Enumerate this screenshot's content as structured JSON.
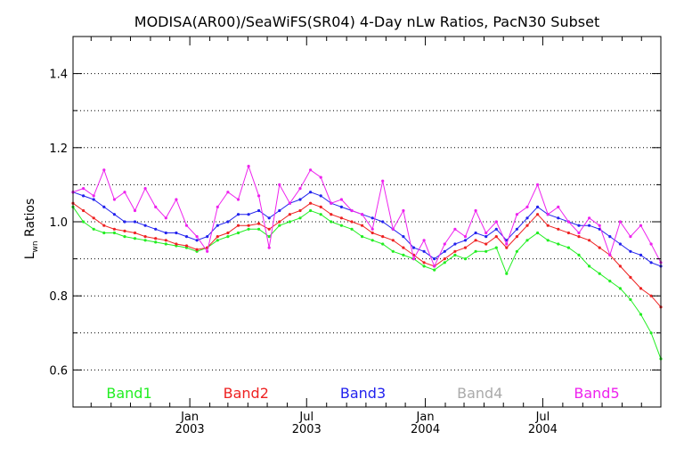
{
  "chart_data": {
    "type": "line",
    "title": "MODISA(AR00)/SeaWiFS(SR04) 4-Day nLw Ratios, PacN30 Subset",
    "ylabel_main": "L",
    "ylabel_sub": "wn",
    "ylabel_rest": " Ratios",
    "xlim": [
      "2002-07-04",
      "2004-12-31"
    ],
    "ylim": [
      0.5,
      1.5
    ],
    "yticks": [
      0.6,
      0.8,
      1.0,
      1.2,
      1.4
    ],
    "ytick_labels": [
      "0.6",
      "0.8",
      "1.0",
      "1.2",
      "1.4"
    ],
    "ygrid": [
      0.6,
      0.7,
      0.8,
      0.9,
      1.0,
      1.1,
      1.2,
      1.3,
      1.4
    ],
    "grid": "horizontal dotted",
    "xticks": [
      {
        "date": "2003-01-01",
        "month": "Jan",
        "year": "2003"
      },
      {
        "date": "2003-07-01",
        "month": "Jul",
        "year": "2003"
      },
      {
        "date": "2004-01-01",
        "month": "Jan",
        "year": "2004"
      },
      {
        "date": "2004-07-01",
        "month": "Jul",
        "year": "2004"
      }
    ],
    "x_minor_ticks": [
      "2002-08-01",
      "2002-09-01",
      "2002-10-01",
      "2002-11-01",
      "2002-12-01",
      "2003-02-01",
      "2003-03-01",
      "2003-04-01",
      "2003-05-01",
      "2003-06-01",
      "2003-08-01",
      "2003-09-01",
      "2003-10-01",
      "2003-11-01",
      "2003-12-01",
      "2004-02-01",
      "2004-03-01",
      "2004-04-01",
      "2004-05-01",
      "2004-06-01",
      "2004-08-01",
      "2004-09-01",
      "2004-10-01",
      "2004-11-01",
      "2004-12-01"
    ],
    "legend_placement": "bottom inside plot",
    "series": [
      {
        "name": "Band1",
        "color": "#22ee22",
        "points": [
          [
            "2002-07-04",
            1.04
          ],
          [
            "2002-07-20",
            1.0
          ],
          [
            "2002-08-05",
            0.98
          ],
          [
            "2002-08-21",
            0.97
          ],
          [
            "2002-09-06",
            0.97
          ],
          [
            "2002-09-22",
            0.96
          ],
          [
            "2002-10-08",
            0.955
          ],
          [
            "2002-10-24",
            0.95
          ],
          [
            "2002-11-09",
            0.945
          ],
          [
            "2002-11-25",
            0.94
          ],
          [
            "2002-12-11",
            0.935
          ],
          [
            "2002-12-27",
            0.93
          ],
          [
            "2003-01-12",
            0.92
          ],
          [
            "2003-01-28",
            0.93
          ],
          [
            "2003-02-13",
            0.95
          ],
          [
            "2003-03-01",
            0.96
          ],
          [
            "2003-03-17",
            0.97
          ],
          [
            "2003-04-02",
            0.98
          ],
          [
            "2003-04-18",
            0.98
          ],
          [
            "2003-05-04",
            0.96
          ],
          [
            "2003-05-20",
            0.99
          ],
          [
            "2003-06-05",
            1.0
          ],
          [
            "2003-06-21",
            1.01
          ],
          [
            "2003-07-07",
            1.03
          ],
          [
            "2003-07-23",
            1.02
          ],
          [
            "2003-08-08",
            1.0
          ],
          [
            "2003-08-24",
            0.99
          ],
          [
            "2003-09-09",
            0.98
          ],
          [
            "2003-09-25",
            0.96
          ],
          [
            "2003-10-11",
            0.95
          ],
          [
            "2003-10-27",
            0.94
          ],
          [
            "2003-11-12",
            0.92
          ],
          [
            "2003-11-28",
            0.91
          ],
          [
            "2003-12-14",
            0.9
          ],
          [
            "2003-12-30",
            0.88
          ],
          [
            "2004-01-15",
            0.87
          ],
          [
            "2004-01-31",
            0.89
          ],
          [
            "2004-02-16",
            0.91
          ],
          [
            "2004-03-03",
            0.9
          ],
          [
            "2004-03-19",
            0.92
          ],
          [
            "2004-04-04",
            0.92
          ],
          [
            "2004-04-20",
            0.93
          ],
          [
            "2004-05-06",
            0.86
          ],
          [
            "2004-05-22",
            0.92
          ],
          [
            "2004-06-07",
            0.95
          ],
          [
            "2004-06-23",
            0.97
          ],
          [
            "2004-07-09",
            0.95
          ],
          [
            "2004-07-25",
            0.94
          ],
          [
            "2004-08-10",
            0.93
          ],
          [
            "2004-08-26",
            0.91
          ],
          [
            "2004-09-11",
            0.88
          ],
          [
            "2004-09-27",
            0.86
          ],
          [
            "2004-10-13",
            0.84
          ],
          [
            "2004-10-29",
            0.82
          ],
          [
            "2004-11-14",
            0.79
          ],
          [
            "2004-11-30",
            0.75
          ],
          [
            "2004-12-16",
            0.7
          ],
          [
            "2004-12-31",
            0.63
          ]
        ]
      },
      {
        "name": "Band2",
        "color": "#ee2222",
        "points": [
          [
            "2002-07-04",
            1.05
          ],
          [
            "2002-07-20",
            1.03
          ],
          [
            "2002-08-05",
            1.01
          ],
          [
            "2002-08-21",
            0.99
          ],
          [
            "2002-09-06",
            0.98
          ],
          [
            "2002-09-22",
            0.975
          ],
          [
            "2002-10-08",
            0.97
          ],
          [
            "2002-10-24",
            0.96
          ],
          [
            "2002-11-09",
            0.955
          ],
          [
            "2002-11-25",
            0.95
          ],
          [
            "2002-12-11",
            0.94
          ],
          [
            "2002-12-27",
            0.935
          ],
          [
            "2003-01-12",
            0.925
          ],
          [
            "2003-01-28",
            0.93
          ],
          [
            "2003-02-13",
            0.96
          ],
          [
            "2003-03-01",
            0.97
          ],
          [
            "2003-03-17",
            0.99
          ],
          [
            "2003-04-02",
            0.99
          ],
          [
            "2003-04-18",
            0.995
          ],
          [
            "2003-05-04",
            0.98
          ],
          [
            "2003-05-20",
            1.0
          ],
          [
            "2003-06-05",
            1.02
          ],
          [
            "2003-06-21",
            1.03
          ],
          [
            "2003-07-07",
            1.05
          ],
          [
            "2003-07-23",
            1.04
          ],
          [
            "2003-08-08",
            1.02
          ],
          [
            "2003-08-24",
            1.01
          ],
          [
            "2003-09-09",
            1.0
          ],
          [
            "2003-09-25",
            0.99
          ],
          [
            "2003-10-11",
            0.97
          ],
          [
            "2003-10-27",
            0.96
          ],
          [
            "2003-11-12",
            0.95
          ],
          [
            "2003-11-28",
            0.93
          ],
          [
            "2003-12-14",
            0.91
          ],
          [
            "2003-12-30",
            0.89
          ],
          [
            "2004-01-15",
            0.88
          ],
          [
            "2004-01-31",
            0.9
          ],
          [
            "2004-02-16",
            0.92
          ],
          [
            "2004-03-03",
            0.93
          ],
          [
            "2004-03-19",
            0.95
          ],
          [
            "2004-04-04",
            0.94
          ],
          [
            "2004-04-20",
            0.96
          ],
          [
            "2004-05-06",
            0.93
          ],
          [
            "2004-05-22",
            0.96
          ],
          [
            "2004-06-07",
            0.99
          ],
          [
            "2004-06-23",
            1.02
          ],
          [
            "2004-07-09",
            0.99
          ],
          [
            "2004-07-25",
            0.98
          ],
          [
            "2004-08-10",
            0.97
          ],
          [
            "2004-08-26",
            0.96
          ],
          [
            "2004-09-11",
            0.95
          ],
          [
            "2004-09-27",
            0.93
          ],
          [
            "2004-10-13",
            0.91
          ],
          [
            "2004-10-29",
            0.88
          ],
          [
            "2004-11-14",
            0.85
          ],
          [
            "2004-11-30",
            0.82
          ],
          [
            "2004-12-16",
            0.8
          ],
          [
            "2004-12-31",
            0.77
          ]
        ]
      },
      {
        "name": "Band3",
        "color": "#2222ee",
        "points": [
          [
            "2002-07-04",
            1.08
          ],
          [
            "2002-07-20",
            1.07
          ],
          [
            "2002-08-05",
            1.06
          ],
          [
            "2002-08-21",
            1.04
          ],
          [
            "2002-09-06",
            1.02
          ],
          [
            "2002-09-22",
            1.0
          ],
          [
            "2002-10-08",
            1.0
          ],
          [
            "2002-10-24",
            0.99
          ],
          [
            "2002-11-09",
            0.98
          ],
          [
            "2002-11-25",
            0.97
          ],
          [
            "2002-12-11",
            0.97
          ],
          [
            "2002-12-27",
            0.96
          ],
          [
            "2003-01-12",
            0.95
          ],
          [
            "2003-01-28",
            0.96
          ],
          [
            "2003-02-13",
            0.99
          ],
          [
            "2003-03-01",
            1.0
          ],
          [
            "2003-03-17",
            1.02
          ],
          [
            "2003-04-02",
            1.02
          ],
          [
            "2003-04-18",
            1.03
          ],
          [
            "2003-05-04",
            1.01
          ],
          [
            "2003-05-20",
            1.03
          ],
          [
            "2003-06-05",
            1.05
          ],
          [
            "2003-06-21",
            1.06
          ],
          [
            "2003-07-07",
            1.08
          ],
          [
            "2003-07-23",
            1.07
          ],
          [
            "2003-08-08",
            1.05
          ],
          [
            "2003-08-24",
            1.04
          ],
          [
            "2003-09-09",
            1.03
          ],
          [
            "2003-09-25",
            1.02
          ],
          [
            "2003-10-11",
            1.01
          ],
          [
            "2003-10-27",
            1.0
          ],
          [
            "2003-11-12",
            0.98
          ],
          [
            "2003-11-28",
            0.96
          ],
          [
            "2003-12-14",
            0.93
          ],
          [
            "2003-12-30",
            0.92
          ],
          [
            "2004-01-15",
            0.9
          ],
          [
            "2004-01-31",
            0.92
          ],
          [
            "2004-02-16",
            0.94
          ],
          [
            "2004-03-03",
            0.95
          ],
          [
            "2004-03-19",
            0.97
          ],
          [
            "2004-04-04",
            0.96
          ],
          [
            "2004-04-20",
            0.98
          ],
          [
            "2004-05-06",
            0.95
          ],
          [
            "2004-05-22",
            0.98
          ],
          [
            "2004-06-07",
            1.01
          ],
          [
            "2004-06-23",
            1.04
          ],
          [
            "2004-07-09",
            1.02
          ],
          [
            "2004-07-25",
            1.01
          ],
          [
            "2004-08-10",
            1.0
          ],
          [
            "2004-08-26",
            0.99
          ],
          [
            "2004-09-11",
            0.99
          ],
          [
            "2004-09-27",
            0.98
          ],
          [
            "2004-10-13",
            0.96
          ],
          [
            "2004-10-29",
            0.94
          ],
          [
            "2004-11-14",
            0.92
          ],
          [
            "2004-11-30",
            0.91
          ],
          [
            "2004-12-16",
            0.89
          ],
          [
            "2004-12-31",
            0.88
          ]
        ]
      },
      {
        "name": "Band4",
        "color": "#aaaaaa",
        "points": []
      },
      {
        "name": "Band5",
        "color": "#ee22ee",
        "points": [
          [
            "2002-07-04",
            1.08
          ],
          [
            "2002-07-20",
            1.09
          ],
          [
            "2002-08-05",
            1.07
          ],
          [
            "2002-08-21",
            1.14
          ],
          [
            "2002-09-06",
            1.06
          ],
          [
            "2002-09-22",
            1.08
          ],
          [
            "2002-10-08",
            1.03
          ],
          [
            "2002-10-24",
            1.09
          ],
          [
            "2002-11-09",
            1.04
          ],
          [
            "2002-11-25",
            1.01
          ],
          [
            "2002-12-11",
            1.06
          ],
          [
            "2002-12-27",
            0.99
          ],
          [
            "2003-01-12",
            0.96
          ],
          [
            "2003-01-28",
            0.92
          ],
          [
            "2003-02-13",
            1.04
          ],
          [
            "2003-03-01",
            1.08
          ],
          [
            "2003-03-17",
            1.06
          ],
          [
            "2003-04-02",
            1.15
          ],
          [
            "2003-04-18",
            1.07
          ],
          [
            "2003-05-04",
            0.93
          ],
          [
            "2003-05-20",
            1.1
          ],
          [
            "2003-06-05",
            1.05
          ],
          [
            "2003-06-21",
            1.09
          ],
          [
            "2003-07-07",
            1.14
          ],
          [
            "2003-07-23",
            1.12
          ],
          [
            "2003-08-08",
            1.05
          ],
          [
            "2003-08-24",
            1.06
          ],
          [
            "2003-09-09",
            1.03
          ],
          [
            "2003-09-25",
            1.02
          ],
          [
            "2003-10-11",
            0.98
          ],
          [
            "2003-10-27",
            1.11
          ],
          [
            "2003-11-12",
            0.98
          ],
          [
            "2003-11-28",
            1.03
          ],
          [
            "2003-12-14",
            0.9
          ],
          [
            "2003-12-30",
            0.95
          ],
          [
            "2004-01-15",
            0.88
          ],
          [
            "2004-01-31",
            0.94
          ],
          [
            "2004-02-16",
            0.98
          ],
          [
            "2004-03-03",
            0.96
          ],
          [
            "2004-03-19",
            1.03
          ],
          [
            "2004-04-04",
            0.97
          ],
          [
            "2004-04-20",
            1.0
          ],
          [
            "2004-05-06",
            0.94
          ],
          [
            "2004-05-22",
            1.02
          ],
          [
            "2004-06-07",
            1.04
          ],
          [
            "2004-06-23",
            1.1
          ],
          [
            "2004-07-09",
            1.02
          ],
          [
            "2004-07-25",
            1.04
          ],
          [
            "2004-08-10",
            1.0
          ],
          [
            "2004-08-26",
            0.97
          ],
          [
            "2004-09-11",
            1.01
          ],
          [
            "2004-09-27",
            0.99
          ],
          [
            "2004-10-13",
            0.91
          ],
          [
            "2004-10-29",
            1.0
          ],
          [
            "2004-11-14",
            0.96
          ],
          [
            "2004-11-30",
            0.99
          ],
          [
            "2004-12-16",
            0.94
          ],
          [
            "2004-12-31",
            0.89
          ]
        ]
      }
    ]
  }
}
